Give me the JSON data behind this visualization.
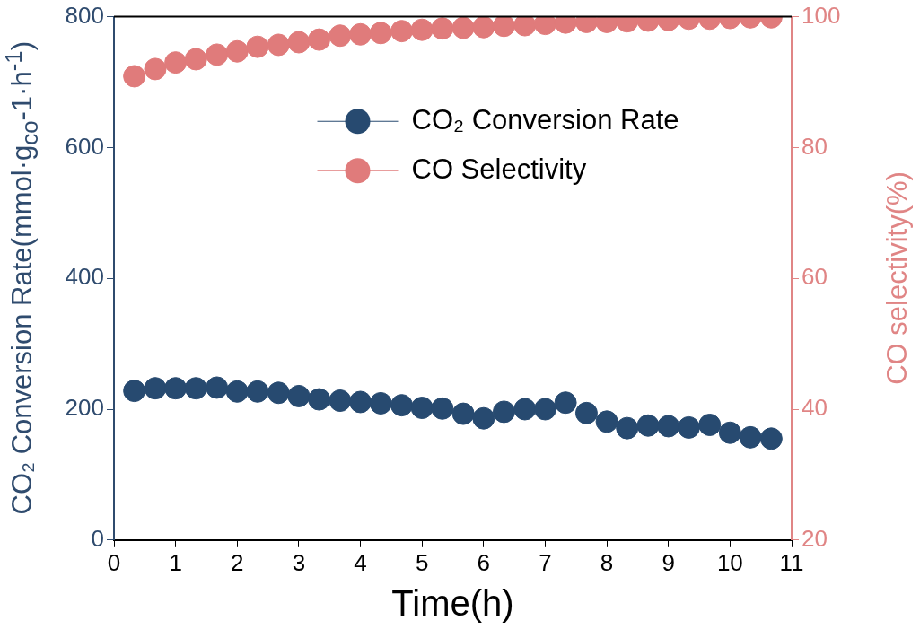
{
  "chart_data": {
    "type": "scatter",
    "xlabel": "Time(h)",
    "ylabel": "CO₂ Conversion Rate(mmol·g$_{co}$-1·h$^{-1}$)",
    "y2label": "CO selectivity(%)",
    "x": [
      0.33,
      0.67,
      1,
      1.33,
      1.67,
      2,
      2.33,
      2.67,
      3,
      3.33,
      3.67,
      4,
      4.33,
      4.67,
      5,
      5.33,
      5.67,
      6,
      6.33,
      6.67,
      7,
      7.33,
      7.67,
      8,
      8.33,
      8.67,
      9,
      9.33,
      9.67,
      10,
      10.33,
      10.67
    ],
    "series": [
      {
        "name": "CO₂ Conversion Rate",
        "color": "#274a70",
        "values": [
          228,
          232,
          232,
          232,
          233,
          227,
          227,
          225,
          220,
          215,
          213,
          211,
          209,
          206,
          202,
          201,
          193,
          186,
          196,
          200,
          200,
          210,
          194,
          181,
          171,
          175,
          174,
          172,
          176,
          164,
          157,
          155
        ]
      },
      {
        "name": "CO Selectivity",
        "color": "#e07b7b",
        "axis": "y2",
        "values": [
          90.9,
          92.0,
          93.0,
          93.5,
          94.2,
          94.7,
          95.4,
          95.7,
          96.1,
          96.5,
          97.1,
          97.3,
          97.5,
          97.8,
          98.0,
          98.2,
          98.3,
          98.4,
          98.6,
          98.7,
          98.9,
          99.1,
          99.2,
          99.2,
          99.3,
          99.4,
          99.5,
          99.7,
          99.7,
          99.8,
          99.9,
          99.9
        ]
      }
    ],
    "xlim": [
      0,
      11
    ],
    "xticks": [
      0,
      1,
      2,
      3,
      4,
      5,
      6,
      7,
      8,
      9,
      10,
      11
    ],
    "ylim": [
      0,
      800
    ],
    "yticks": [
      0,
      200,
      400,
      600,
      800
    ],
    "y2lim": [
      20,
      100
    ],
    "y2ticks": [
      20,
      40,
      60,
      80,
      100
    ],
    "grid": false,
    "legend": "top right",
    "marker": "circle"
  }
}
